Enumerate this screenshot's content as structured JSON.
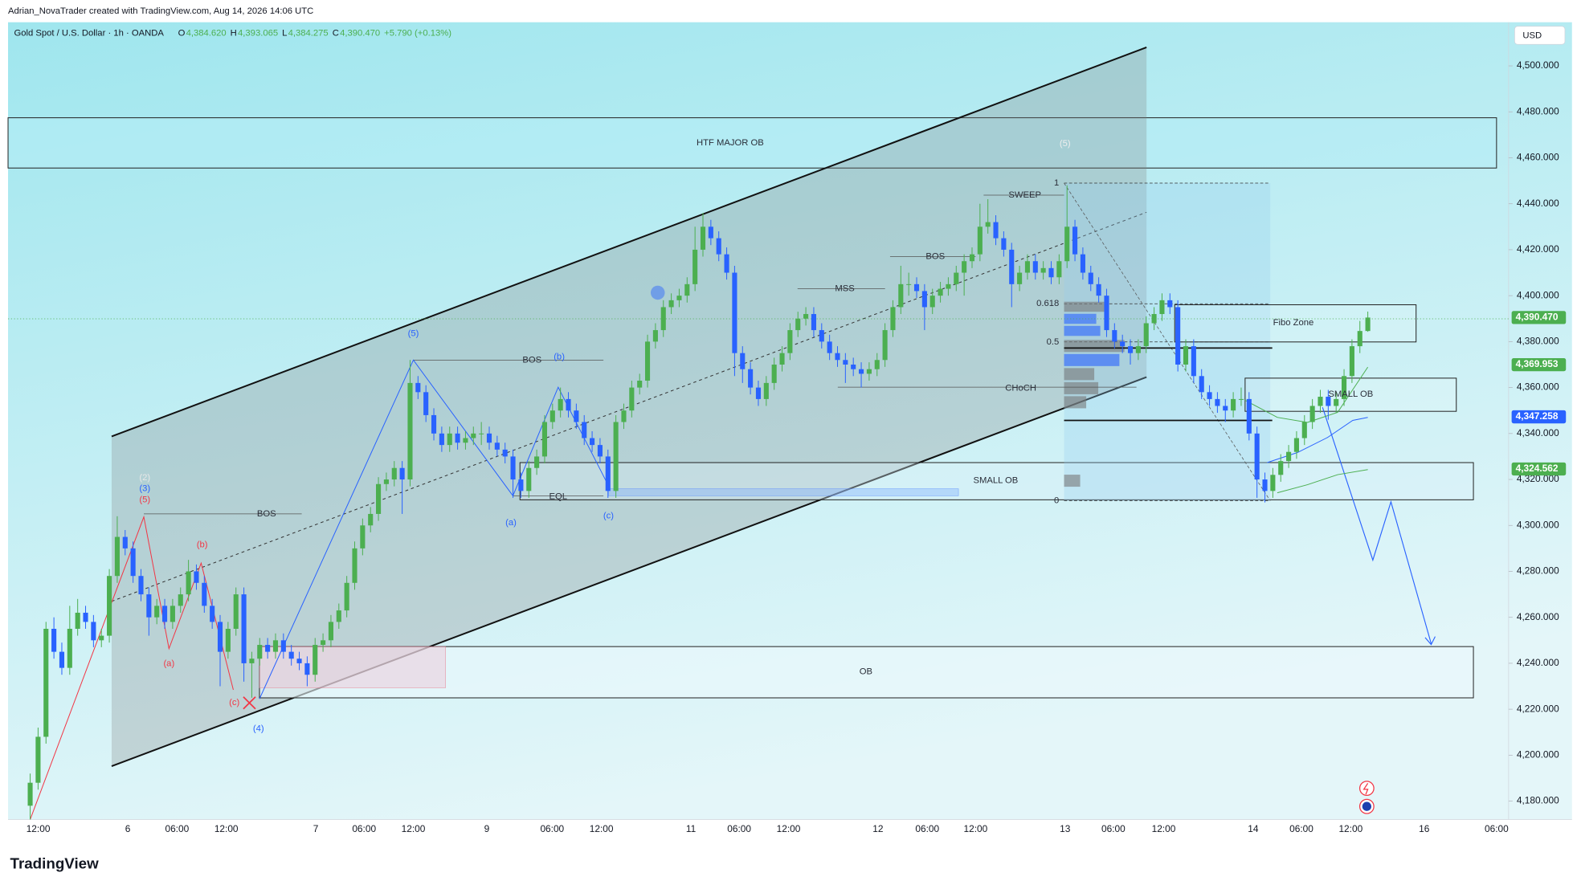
{
  "header": {
    "credit": "Adrian_NovaTrader created with TradingView.com, Aug 14, 2026 14:06 UTC",
    "symbol": "Gold Spot / U.S. Dollar · 1h · OANDA",
    "ohlc": [
      {
        "key": "O",
        "value": "4,384.620"
      },
      {
        "key": "H",
        "value": "4,393.065"
      },
      {
        "key": "L",
        "value": "4,384.275"
      },
      {
        "key": "C",
        "value": "4,390.470"
      }
    ],
    "change": "+5.790 (+0.13%)",
    "currency": "USD",
    "brand": "TradingView"
  },
  "chart_data": {
    "type": "candlestick",
    "up_color": "#4caf50",
    "down_color": "#2962ff",
    "grid": false,
    "ylim": [
      4172,
      4519
    ],
    "yticks": [
      {
        "value": 4180,
        "label": "4,180.000"
      },
      {
        "value": 4200,
        "label": "4,200.000"
      },
      {
        "value": 4220,
        "label": "4,220.000"
      },
      {
        "value": 4240,
        "label": "4,240.000"
      },
      {
        "value": 4260,
        "label": "4,260.000"
      },
      {
        "value": 4280,
        "label": "4,280.000"
      },
      {
        "value": 4300,
        "label": "4,300.000"
      },
      {
        "value": 4320,
        "label": "4,320.000"
      },
      {
        "value": 4340,
        "label": "4,340.000"
      },
      {
        "value": 4360,
        "label": "4,360.000"
      },
      {
        "value": 4380,
        "label": "4,380.000"
      },
      {
        "value": 4400,
        "label": "4,400.000"
      },
      {
        "value": 4420,
        "label": "4,420.000"
      },
      {
        "value": 4440,
        "label": "4,440.000"
      },
      {
        "value": 4460,
        "label": "4,460.000"
      },
      {
        "value": 4480,
        "label": "4,480.000"
      },
      {
        "value": 4500,
        "label": "4,500.000"
      }
    ],
    "xtick_labels": [
      "12:00",
      "6",
      "06:00",
      "12:00",
      "7",
      "06:00",
      "12:00",
      "9",
      "06:00",
      "12:00",
      "11",
      "06:00",
      "12:00",
      "12",
      "06:00",
      "12:00",
      "13",
      "06:00",
      "12:00",
      "14",
      "06:00",
      "12:00",
      "16",
      "06:00"
    ],
    "price_labels": [
      {
        "value": 4390.47,
        "label": "4,390.470",
        "color": "#4caf50"
      },
      {
        "value": 4369.953,
        "label": "4,369.953",
        "color": "#4caf50"
      },
      {
        "value": 4347.258,
        "label": "4,347.258",
        "color": "#2962ff"
      },
      {
        "value": 4324.562,
        "label": "4,324.562",
        "color": "#4caf50"
      }
    ],
    "annotations": [
      "HTF MAJOR OB",
      "BOS",
      "BOS",
      "BOS",
      "MSS",
      "SWEEP",
      "CHoCH",
      "EQL",
      "SMALL OB",
      "SMALL OB",
      "OB",
      "Fibo Zone",
      "1",
      "0.618",
      "0.5",
      "0",
      "(2)",
      "(3)",
      "(5)",
      "(b)",
      "(a)",
      "(c)",
      "(4)",
      "(5)",
      "(b)",
      "(a)",
      "(c)",
      "(5)"
    ],
    "ohlc": [
      [
        4178,
        4192,
        4172,
        4188
      ],
      [
        4188,
        4212,
        4185,
        4208
      ],
      [
        4208,
        4258,
        4205,
        4255
      ],
      [
        4255,
        4260,
        4242,
        4245
      ],
      [
        4245,
        4249,
        4235,
        4238
      ],
      [
        4238,
        4265,
        4235,
        4255
      ],
      [
        4255,
        4268,
        4252,
        4262
      ],
      [
        4262,
        4265,
        4255,
        4258
      ],
      [
        4258,
        4261,
        4247,
        4250
      ],
      [
        4250,
        4255,
        4247,
        4252
      ],
      [
        4252,
        4281,
        4249,
        4278
      ],
      [
        4278,
        4304,
        4275,
        4295
      ],
      [
        4295,
        4298,
        4287,
        4290
      ],
      [
        4290,
        4293,
        4275,
        4278
      ],
      [
        4278,
        4281,
        4267,
        4270
      ],
      [
        4270,
        4273,
        4252,
        4260
      ],
      [
        4260,
        4268,
        4257,
        4265
      ],
      [
        4265,
        4268,
        4255,
        4258
      ],
      [
        4258,
        4268,
        4255,
        4265
      ],
      [
        4265,
        4273,
        4262,
        4270
      ],
      [
        4270,
        4285,
        4267,
        4280
      ],
      [
        4280,
        4283,
        4272,
        4275
      ],
      [
        4275,
        4278,
        4262,
        4265
      ],
      [
        4265,
        4268,
        4255,
        4258
      ],
      [
        4258,
        4261,
        4230,
        4245
      ],
      [
        4245,
        4258,
        4242,
        4255
      ],
      [
        4255,
        4273,
        4252,
        4270
      ],
      [
        4270,
        4273,
        4232,
        4240
      ],
      [
        4240,
        4245,
        4225,
        4242
      ],
      [
        4242,
        4251,
        4239,
        4248
      ],
      [
        4248,
        4251,
        4242,
        4245
      ],
      [
        4245,
        4253,
        4242,
        4250
      ],
      [
        4250,
        4253,
        4242,
        4245
      ],
      [
        4245,
        4248,
        4239,
        4242
      ],
      [
        4242,
        4245,
        4237,
        4240
      ],
      [
        4240,
        4243,
        4230,
        4235
      ],
      [
        4235,
        4251,
        4232,
        4248
      ],
      [
        4248,
        4253,
        4245,
        4250
      ],
      [
        4250,
        4261,
        4247,
        4258
      ],
      [
        4258,
        4266,
        4255,
        4263
      ],
      [
        4263,
        4278,
        4260,
        4275
      ],
      [
        4275,
        4293,
        4272,
        4290
      ],
      [
        4290,
        4303,
        4287,
        4300
      ],
      [
        4300,
        4308,
        4297,
        4305
      ],
      [
        4305,
        4321,
        4302,
        4318
      ],
      [
        4318,
        4323,
        4315,
        4320
      ],
      [
        4320,
        4328,
        4317,
        4325
      ],
      [
        4325,
        4328,
        4305,
        4320
      ],
      [
        4320,
        4372,
        4317,
        4362
      ],
      [
        4362,
        4365,
        4355,
        4358
      ],
      [
        4358,
        4361,
        4345,
        4348
      ],
      [
        4348,
        4351,
        4337,
        4340
      ],
      [
        4340,
        4343,
        4332,
        4335
      ],
      [
        4335,
        4343,
        4332,
        4340
      ],
      [
        4340,
        4343,
        4333,
        4336
      ],
      [
        4336,
        4341,
        4333,
        4338
      ],
      [
        4338,
        4343,
        4335,
        4340
      ],
      [
        4340,
        4345,
        4335,
        4340
      ],
      [
        4340,
        4343,
        4333,
        4336
      ],
      [
        4336,
        4339,
        4330,
        4333
      ],
      [
        4333,
        4336,
        4327,
        4330
      ],
      [
        4330,
        4333,
        4312,
        4320
      ],
      [
        4320,
        4323,
        4312,
        4315
      ],
      [
        4315,
        4328,
        4312,
        4325
      ],
      [
        4325,
        4333,
        4322,
        4330
      ],
      [
        4330,
        4348,
        4327,
        4345
      ],
      [
        4345,
        4353,
        4342,
        4350
      ],
      [
        4350,
        4360,
        4347,
        4355
      ],
      [
        4355,
        4358,
        4347,
        4350
      ],
      [
        4350,
        4353,
        4342,
        4345
      ],
      [
        4345,
        4348,
        4335,
        4338
      ],
      [
        4338,
        4341,
        4332,
        4335
      ],
      [
        4335,
        4338,
        4327,
        4330
      ],
      [
        4330,
        4333,
        4312,
        4315
      ],
      [
        4315,
        4348,
        4312,
        4345
      ],
      [
        4345,
        4353,
        4342,
        4350
      ],
      [
        4350,
        4363,
        4347,
        4360
      ],
      [
        4360,
        4366,
        4357,
        4363
      ],
      [
        4363,
        4383,
        4360,
        4380
      ],
      [
        4380,
        4388,
        4377,
        4385
      ],
      [
        4385,
        4398,
        4382,
        4395
      ],
      [
        4395,
        4401,
        4392,
        4398
      ],
      [
        4398,
        4403,
        4395,
        4400
      ],
      [
        4400,
        4408,
        4397,
        4405
      ],
      [
        4405,
        4430,
        4402,
        4420
      ],
      [
        4420,
        4436,
        4417,
        4430
      ],
      [
        4430,
        4433,
        4422,
        4425
      ],
      [
        4425,
        4428,
        4415,
        4418
      ],
      [
        4418,
        4421,
        4407,
        4410
      ],
      [
        4410,
        4413,
        4365,
        4375
      ],
      [
        4375,
        4378,
        4362,
        4368
      ],
      [
        4368,
        4371,
        4357,
        4360
      ],
      [
        4360,
        4363,
        4352,
        4355
      ],
      [
        4355,
        4365,
        4352,
        4362
      ],
      [
        4362,
        4373,
        4359,
        4370
      ],
      [
        4370,
        4378,
        4367,
        4375
      ],
      [
        4375,
        4388,
        4372,
        4385
      ],
      [
        4385,
        4393,
        4382,
        4390
      ],
      [
        4390,
        4395,
        4387,
        4392
      ],
      [
        4392,
        4395,
        4382,
        4385
      ],
      [
        4385,
        4388,
        4377,
        4380
      ],
      [
        4380,
        4383,
        4372,
        4375
      ],
      [
        4375,
        4378,
        4369,
        4372
      ],
      [
        4372,
        4375,
        4362,
        4370
      ],
      [
        4370,
        4373,
        4365,
        4368
      ],
      [
        4368,
        4371,
        4360,
        4366
      ],
      [
        4366,
        4371,
        4363,
        4368
      ],
      [
        4368,
        4375,
        4365,
        4372
      ],
      [
        4372,
        4388,
        4369,
        4385
      ],
      [
        4385,
        4398,
        4382,
        4395
      ],
      [
        4395,
        4413,
        4392,
        4405
      ],
      [
        4405,
        4410,
        4400,
        4405
      ],
      [
        4405,
        4408,
        4399,
        4402
      ],
      [
        4402,
        4405,
        4385,
        4395
      ],
      [
        4395,
        4403,
        4392,
        4400
      ],
      [
        4400,
        4406,
        4397,
        4403
      ],
      [
        4403,
        4408,
        4400,
        4405
      ],
      [
        4405,
        4413,
        4402,
        4410
      ],
      [
        4410,
        4418,
        4400,
        4415
      ],
      [
        4415,
        4421,
        4412,
        4418
      ],
      [
        4418,
        4440,
        4415,
        4430
      ],
      [
        4430,
        4442,
        4427,
        4432
      ],
      [
        4432,
        4435,
        4422,
        4425
      ],
      [
        4425,
        4428,
        4417,
        4420
      ],
      [
        4420,
        4423,
        4395,
        4405
      ],
      [
        4405,
        4413,
        4402,
        4410
      ],
      [
        4410,
        4418,
        4407,
        4415
      ],
      [
        4415,
        4418,
        4407,
        4410
      ],
      [
        4410,
        4415,
        4407,
        4412
      ],
      [
        4412,
        4415,
        4405,
        4408
      ],
      [
        4408,
        4418,
        4405,
        4415
      ],
      [
        4415,
        4448,
        4412,
        4430
      ],
      [
        4430,
        4433,
        4415,
        4418
      ],
      [
        4418,
        4421,
        4407,
        4410
      ],
      [
        4410,
        4413,
        4402,
        4405
      ],
      [
        4405,
        4408,
        4397,
        4400
      ],
      [
        4400,
        4403,
        4382,
        4385
      ],
      [
        4385,
        4388,
        4377,
        4380
      ],
      [
        4380,
        4383,
        4375,
        4378
      ],
      [
        4378,
        4381,
        4370,
        4375
      ],
      [
        4375,
        4381,
        4372,
        4378
      ],
      [
        4378,
        4391,
        4375,
        4388
      ],
      [
        4388,
        4395,
        4385,
        4392
      ],
      [
        4392,
        4401,
        4389,
        4398
      ],
      [
        4398,
        4401,
        4392,
        4395
      ],
      [
        4395,
        4398,
        4367,
        4370
      ],
      [
        4370,
        4381,
        4367,
        4378
      ],
      [
        4378,
        4381,
        4362,
        4365
      ],
      [
        4365,
        4368,
        4355,
        4358
      ],
      [
        4358,
        4361,
        4352,
        4355
      ],
      [
        4355,
        4358,
        4349,
        4352
      ],
      [
        4352,
        4355,
        4345,
        4350
      ],
      [
        4350,
        4358,
        4347,
        4355
      ],
      [
        4355,
        4360,
        4352,
        4355
      ],
      [
        4355,
        4358,
        4337,
        4340
      ],
      [
        4340,
        4343,
        4312,
        4320
      ],
      [
        4320,
        4323,
        4310,
        4315
      ],
      [
        4315,
        4325,
        4312,
        4322
      ],
      [
        4322,
        4331,
        4319,
        4328
      ],
      [
        4328,
        4335,
        4325,
        4332
      ],
      [
        4332,
        4341,
        4329,
        4338
      ],
      [
        4338,
        4348,
        4335,
        4345
      ],
      [
        4345,
        4355,
        4342,
        4352
      ],
      [
        4352,
        4359,
        4349,
        4356
      ],
      [
        4356,
        4359,
        4346,
        4352
      ],
      [
        4352,
        4358,
        4349,
        4355
      ],
      [
        4355,
        4368,
        4352,
        4365
      ],
      [
        4365,
        4381,
        4362,
        4378
      ],
      [
        4378,
        4389,
        4375,
        4384.62
      ],
      [
        4384.62,
        4393.065,
        4384.275,
        4390.47
      ]
    ]
  }
}
